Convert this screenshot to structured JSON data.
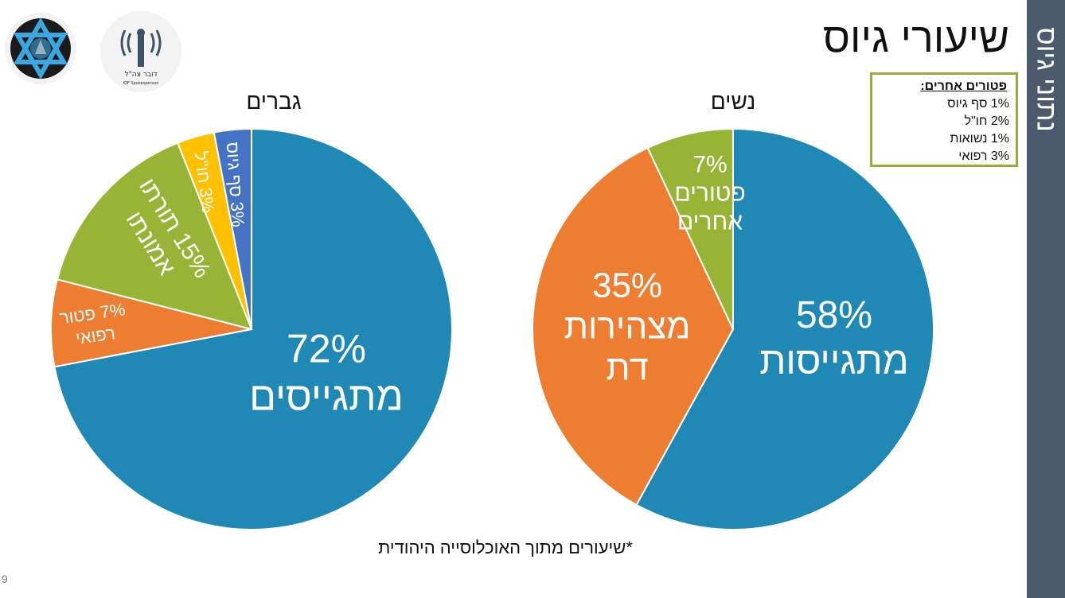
{
  "slide": {
    "title": "שיעורי גיוס",
    "side_label": "נתוני גיוס",
    "footnote": "*שיעורים מתוך האוכלוסייה היהודית",
    "page_number": "9",
    "logos": {
      "right_logo_text": "דובר צה\"ל",
      "right_logo_subtext": "IDF Spokesperson"
    }
  },
  "legend_box": {
    "title": "פטורים אחרים:",
    "items": [
      "1% סף גיוס",
      "2% חו\"ל",
      "1% נשואות",
      "3% רפואי"
    ],
    "border_color": "#96ab3a"
  },
  "colors": {
    "blue": "#1f88b4",
    "orange": "#ed7d31",
    "green": "#98b436",
    "yellow": "#ffc000",
    "dark_blue": "#4472c4",
    "side_bar": "#4b5a6d"
  },
  "chart_data": [
    {
      "type": "pie",
      "title": "גברים",
      "slices": [
        {
          "value": 72,
          "label_lines": [
            "72%",
            "מתגייסים"
          ],
          "color": "#1f88b4"
        },
        {
          "value": 7,
          "label_lines": [
            "7% פטור",
            "רפואי"
          ],
          "color": "#ed7d31"
        },
        {
          "value": 15,
          "label_lines": [
            "15% תורתו",
            "אמונתו"
          ],
          "color": "#98b436"
        },
        {
          "value": 3,
          "label_lines": [
            "3% חו\"ל"
          ],
          "color": "#ffc000"
        },
        {
          "value": 3,
          "label_lines": [
            "3% סף גיוס"
          ],
          "color": "#4472c4"
        }
      ]
    },
    {
      "type": "pie",
      "title": "נשים",
      "slices": [
        {
          "value": 58,
          "label_lines": [
            "58%",
            "מתגייסות"
          ],
          "color": "#1f88b4"
        },
        {
          "value": 35,
          "label_lines": [
            "35%",
            "מצהירות",
            "דת"
          ],
          "color": "#ed7d31"
        },
        {
          "value": 7,
          "label_lines": [
            "7%",
            "פטורים",
            "אחרים"
          ],
          "color": "#98b436"
        }
      ]
    }
  ]
}
